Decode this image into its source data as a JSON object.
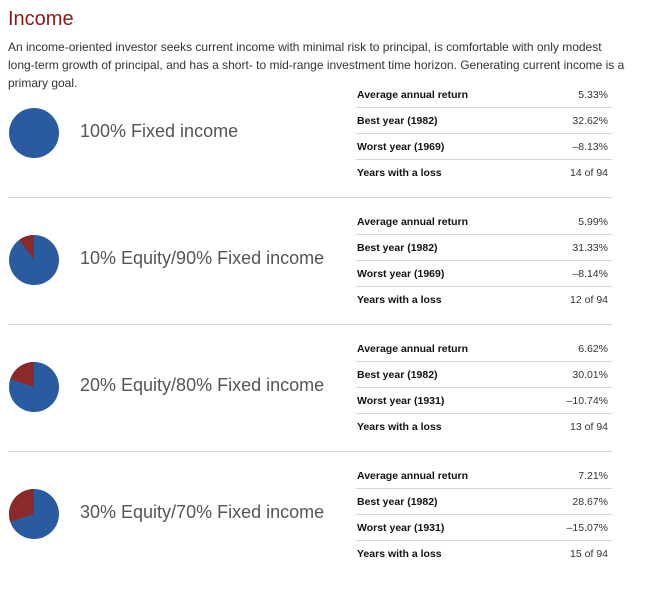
{
  "page": {
    "title": "Income",
    "description": "An income-oriented investor seeks current income with minimal risk to principal, is comfortable with only modest long-term growth of principal, and has a short- to mid-range investment time horizon. Generating current income is a primary goal."
  },
  "colors": {
    "title": "#8b1a1a",
    "fixed_income": "#2a5aa0",
    "equity": "#8b2a2a"
  },
  "portfolios": [
    {
      "label": "100% Fixed income",
      "equity_fraction": 0.0,
      "stats": [
        {
          "key": "Average annual return",
          "value": "5.33%"
        },
        {
          "key": "Best year (1982)",
          "value": "32.62%"
        },
        {
          "key": "Worst year (1969)",
          "value": "–8.13%"
        },
        {
          "key": "Years with a loss",
          "value": "14 of 94"
        }
      ]
    },
    {
      "label": "10% Equity/90% Fixed income",
      "equity_fraction": 0.1,
      "stats": [
        {
          "key": "Average annual return",
          "value": "5.99%"
        },
        {
          "key": "Best year (1982)",
          "value": "31.33%"
        },
        {
          "key": "Worst year (1969)",
          "value": "–8.14%"
        },
        {
          "key": "Years with a loss",
          "value": "12 of 94"
        }
      ]
    },
    {
      "label": "20% Equity/80% Fixed income",
      "equity_fraction": 0.2,
      "stats": [
        {
          "key": "Average annual return",
          "value": "6.62%"
        },
        {
          "key": "Best year (1982)",
          "value": "30.01%"
        },
        {
          "key": "Worst year (1931)",
          "value": "–10.74%"
        },
        {
          "key": "Years with a loss",
          "value": "13 of 94"
        }
      ]
    },
    {
      "label": "30% Equity/70% Fixed income",
      "equity_fraction": 0.3,
      "stats": [
        {
          "key": "Average annual return",
          "value": "7.21%"
        },
        {
          "key": "Best year (1982)",
          "value": "28.67%"
        },
        {
          "key": "Worst year (1931)",
          "value": "–15.07%"
        },
        {
          "key": "Years with a loss",
          "value": "15 of 94"
        }
      ]
    }
  ]
}
